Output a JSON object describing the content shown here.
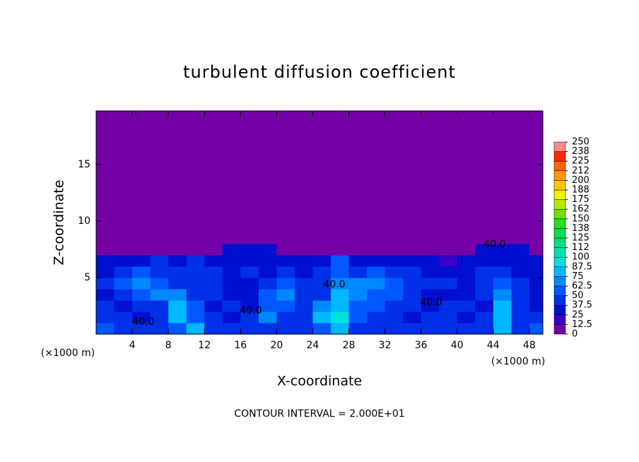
{
  "chart_data": {
    "type": "heatmap",
    "title": "turbulent diffusion coefficient",
    "x_label": "X-coordinate",
    "y_label": "Z-coordinate",
    "x_unit": "(×1000 m)",
    "y_unit": "(×1000 m)",
    "footer": "CONTOUR INTERVAL = 2.000E+01",
    "annotations": [
      "40.0",
      "40.0",
      "40.0",
      "40.0",
      "40.0"
    ],
    "xlim": [
      0,
      49.5
    ],
    "ylim": [
      0,
      19.75
    ],
    "xticks": [
      4,
      8,
      12,
      16,
      20,
      24,
      28,
      32,
      36,
      40,
      44,
      48
    ],
    "yticks": [
      5,
      10,
      15
    ],
    "x_edges": [
      0,
      2,
      4,
      6,
      8,
      10,
      12,
      14,
      16,
      18,
      20,
      22,
      24,
      26,
      28,
      30,
      32,
      34,
      36,
      38,
      40,
      42,
      44,
      46,
      48,
      50
    ],
    "y_edges": [
      0,
      1,
      2,
      3,
      4,
      5,
      6,
      7,
      8,
      19.75
    ],
    "values": [
      [
        60,
        45,
        40,
        45,
        50,
        80,
        45,
        40,
        40,
        45,
        40,
        45,
        55,
        85,
        45,
        40,
        45,
        40,
        45,
        40,
        40,
        45,
        85,
        45,
        50
      ],
      [
        45,
        40,
        35,
        40,
        80,
        60,
        40,
        35,
        40,
        70,
        40,
        45,
        80,
        90,
        55,
        40,
        40,
        35,
        40,
        40,
        35,
        40,
        80,
        40,
        45
      ],
      [
        40,
        35,
        40,
        45,
        75,
        50,
        35,
        40,
        35,
        60,
        55,
        40,
        70,
        85,
        60,
        50,
        45,
        40,
        35,
        40,
        40,
        35,
        75,
        40,
        35
      ],
      [
        35,
        40,
        60,
        70,
        70,
        40,
        40,
        35,
        30,
        55,
        65,
        45,
        45,
        80,
        70,
        60,
        50,
        40,
        35,
        35,
        35,
        40,
        70,
        40,
        30
      ],
      [
        40,
        50,
        70,
        55,
        45,
        40,
        45,
        35,
        35,
        40,
        60,
        40,
        40,
        70,
        65,
        70,
        55,
        45,
        40,
        40,
        35,
        40,
        50,
        40,
        35
      ],
      [
        35,
        45,
        50,
        45,
        40,
        45,
        40,
        35,
        40,
        35,
        40,
        35,
        40,
        60,
        40,
        55,
        45,
        40,
        35,
        25,
        35,
        40,
        40,
        35,
        35
      ],
      [
        30,
        35,
        35,
        40,
        35,
        40,
        35,
        30,
        35,
        35,
        35,
        30,
        35,
        50,
        35,
        35,
        35,
        30,
        25,
        15,
        30,
        35,
        35,
        35,
        30
      ],
      [
        0,
        0,
        0,
        5,
        0,
        0,
        0,
        25,
        30,
        30,
        0,
        0,
        10,
        5,
        0,
        0,
        0,
        0,
        0,
        0,
        0,
        30,
        35,
        30,
        0
      ],
      [
        0,
        0,
        0,
        0,
        0,
        0,
        0,
        0,
        0,
        0,
        0,
        0,
        0,
        0,
        0,
        0,
        0,
        0,
        0,
        0,
        0,
        0,
        0,
        0,
        0
      ]
    ],
    "colorbar_lim": [
      0,
      250
    ],
    "colorbar_ticks": [
      0,
      12.5,
      25,
      37.5,
      50,
      62.5,
      75,
      87.5,
      100,
      {
        "value": 112.5,
        "label": "112"
      },
      125,
      {
        "value": 137.5,
        "label": "138"
      },
      150,
      {
        "value": 162.5,
        "label": "162"
      },
      175,
      {
        "value": 187.5,
        "label": "188"
      },
      200,
      {
        "value": 212.5,
        "label": "212"
      },
      225,
      {
        "value": 237.5,
        "label": "238"
      },
      250
    ],
    "colors": [
      "#7500a8",
      "#3a00c8",
      "#0010d0",
      "#0030e8",
      "#0058ff",
      "#0088ff",
      "#00b8ff",
      "#00e0e0",
      "#00e0b0",
      "#00e080",
      "#00e050",
      "#20e020",
      "#70e000",
      "#b8e800",
      "#f0f000",
      "#ffc800",
      "#ff9800",
      "#ff6000",
      "#ff2800",
      "#ff8888"
    ]
  }
}
